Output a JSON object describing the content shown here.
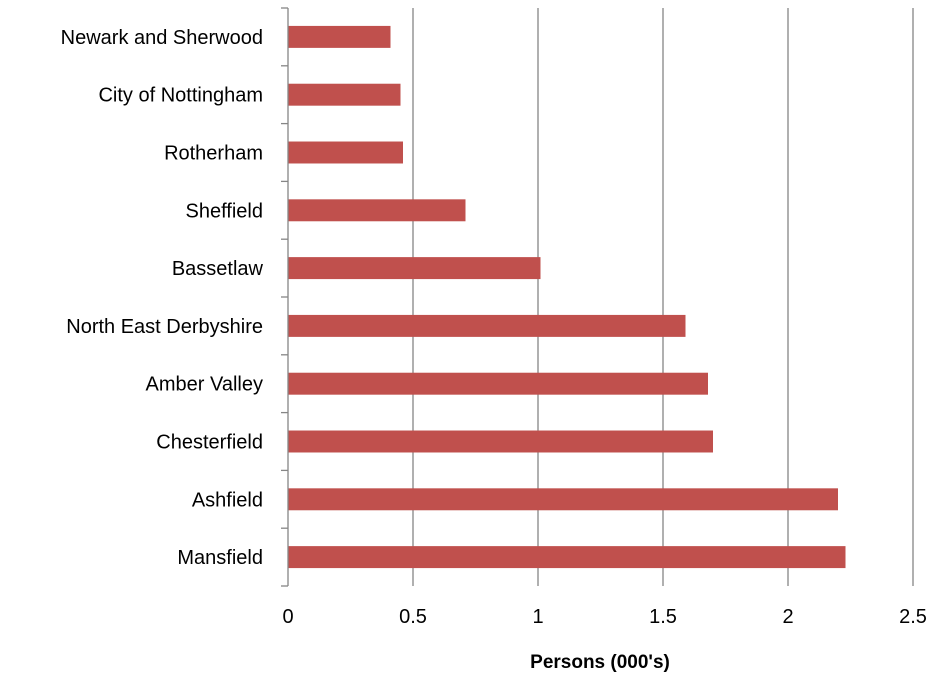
{
  "chart_data": {
    "type": "bar",
    "orientation": "horizontal",
    "categories": [
      "Newark and Sherwood",
      "City of Nottingham",
      "Rotherham",
      "Sheffield",
      "Bassetlaw",
      "North East Derbyshire",
      "Amber Valley",
      "Chesterfield",
      "Ashfield",
      "Mansfield"
    ],
    "values": [
      0.41,
      0.45,
      0.46,
      0.71,
      1.01,
      1.59,
      1.68,
      1.7,
      2.2,
      2.23
    ],
    "title": "",
    "xlabel": "Persons (000's)",
    "ylabel": "",
    "xlim": [
      0,
      2.5
    ],
    "x_ticks": [
      "0",
      "0.5",
      "1",
      "1.5",
      "2",
      "2.5"
    ],
    "grid": "vertical major gridlines",
    "legend": "none",
    "colors": {
      "bar": "#C0504D",
      "grid": "#868686",
      "axis": "#868686"
    }
  }
}
